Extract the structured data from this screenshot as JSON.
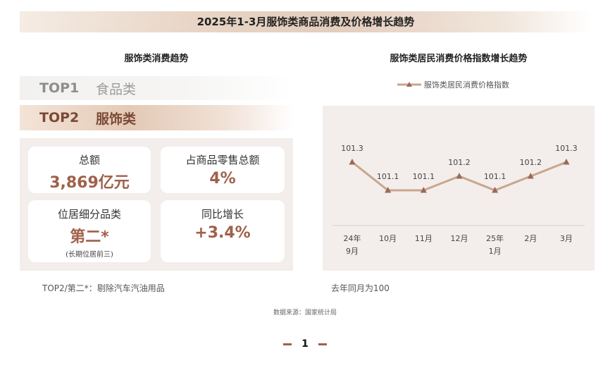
{
  "header": {
    "title": "2025年1-3月服饰类商品消费及价格增长趋势"
  },
  "left": {
    "section_title": "服饰类消费趋势",
    "rank1": {
      "label": "TOP1",
      "category": "食品类"
    },
    "rank2": {
      "label": "TOP2",
      "category": "服饰类"
    },
    "cards": {
      "total": {
        "label": "总额",
        "value": "3,869亿元"
      },
      "share": {
        "label": "占商品零售总额",
        "value": "4%"
      },
      "position": {
        "label": "位居细分品类",
        "value": "第二*",
        "note": "(长期位居前三)"
      },
      "growth": {
        "label": "同比增长",
        "value": "+3.4%"
      }
    },
    "footnote": "TOP2/第二*：剔除汽车汽油用品"
  },
  "right": {
    "section_title": "服饰类居民消费价格指数增长趋势",
    "footnote": "去年同月为100"
  },
  "chart_data": {
    "type": "line",
    "title": "服饰类居民消费价格指数增长趋势",
    "categories": [
      [
        "24年",
        "9月"
      ],
      [
        "10月"
      ],
      [
        "11月"
      ],
      [
        "12月"
      ],
      [
        "25年",
        "1月"
      ],
      [
        "2月"
      ],
      [
        "3月"
      ]
    ],
    "series": [
      {
        "name": "服饰类居民消费价格指数",
        "values": [
          101.3,
          101.1,
          101.1,
          101.2,
          101.1,
          101.2,
          101.3
        ],
        "color": "#c8a68e",
        "marker_color": "#9a6a57"
      }
    ],
    "ylim": [
      100.6,
      101.4
    ],
    "grid": false,
    "legend_position": "top-center",
    "data_labels": true
  },
  "source": "数据来源：国家统计局",
  "page": {
    "number": "1"
  },
  "colors": {
    "accent": "#a0604a",
    "line": "#c8a68e",
    "panel": "#f3eeeb"
  }
}
